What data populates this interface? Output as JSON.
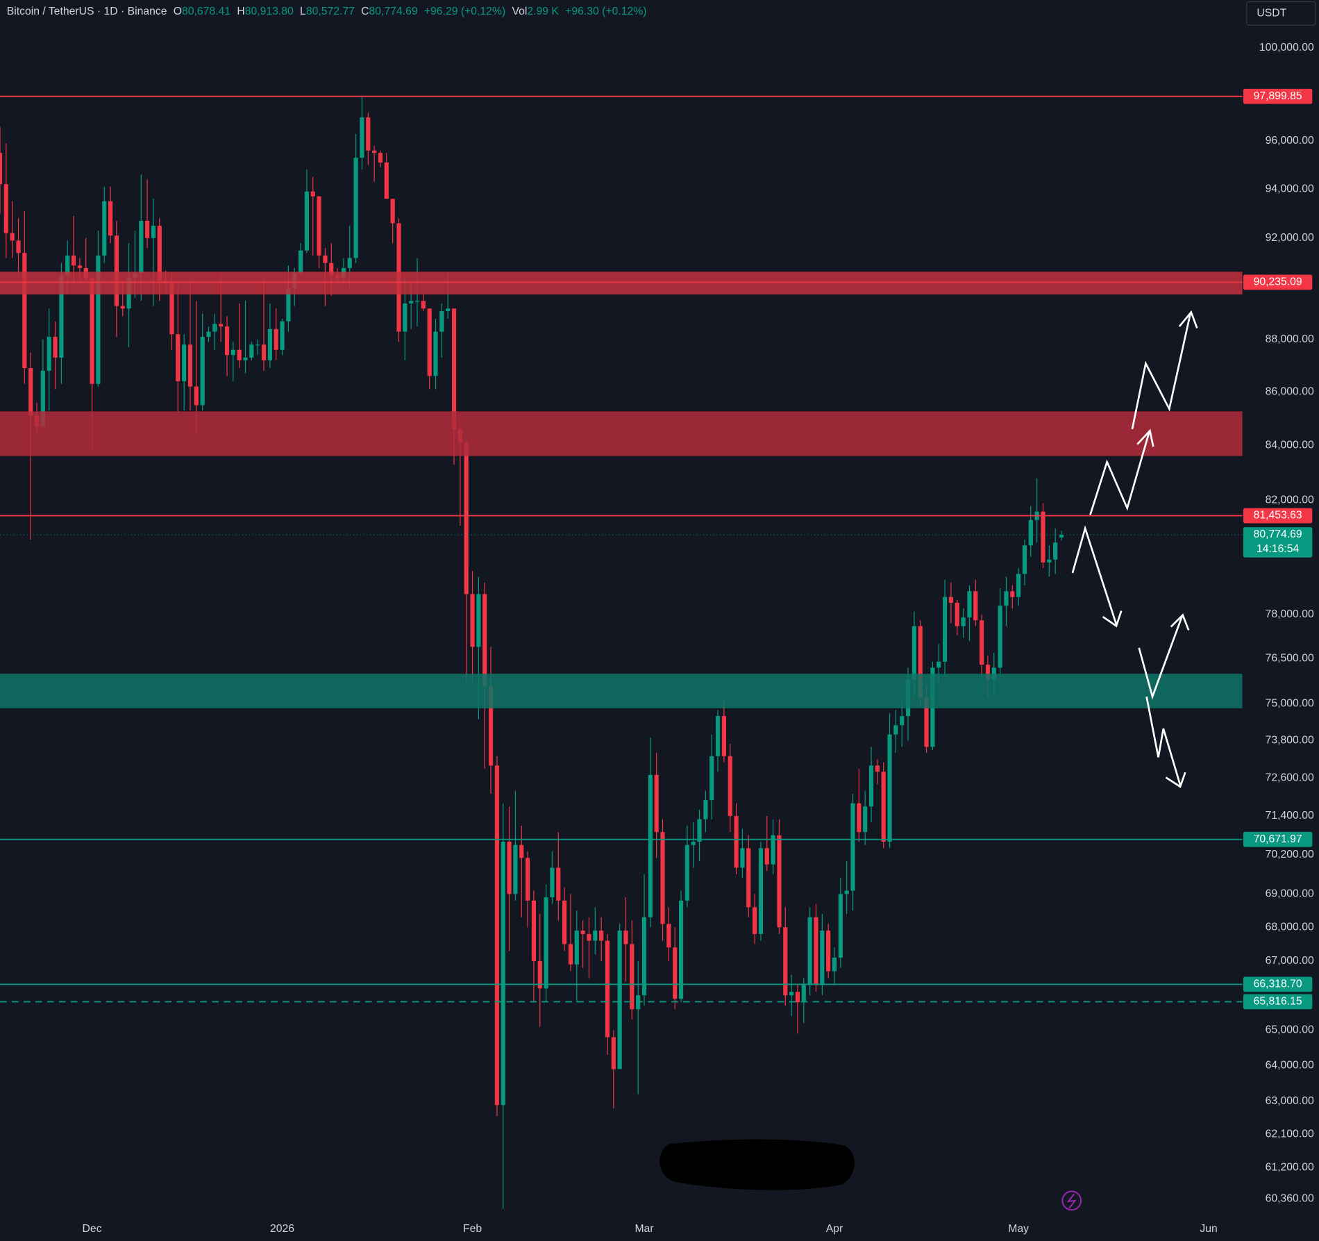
{
  "header": {
    "symbol": "Bitcoin / TetherUS · 1D · Binance",
    "open_label": "O",
    "open": "80,678.41",
    "high_label": "H",
    "high": "80,913.80",
    "low_label": "L",
    "low": "80,572.77",
    "close_label": "C",
    "close": "80,774.69",
    "change": "+96.29 (+0.12%)",
    "vol_label": "Vol",
    "volume": "2.99 K",
    "vol_change": "+96.30 (+0.12%)"
  },
  "currency": "USDT",
  "chart_data": {
    "type": "candlestick",
    "up_color": "#089981",
    "down_color": "#f23645",
    "log_scale": true,
    "ylim": [
      59918,
      102126
    ],
    "yticks": [
      {
        "value": 100000,
        "label": "100,000.00"
      },
      {
        "value": 96000,
        "label": "96,000.00"
      },
      {
        "value": 94000,
        "label": "94,000.00"
      },
      {
        "value": 92000,
        "label": "92,000.00"
      },
      {
        "value": 88000,
        "label": "88,000.00"
      },
      {
        "value": 86000,
        "label": "86,000.00"
      },
      {
        "value": 84000,
        "label": "84,000.00"
      },
      {
        "value": 82000,
        "label": "82,000.00"
      },
      {
        "value": 78000,
        "label": "78,000.00"
      },
      {
        "value": 76500,
        "label": "76,500.00"
      },
      {
        "value": 75000,
        "label": "75,000.00"
      },
      {
        "value": 73800,
        "label": "73,800.00"
      },
      {
        "value": 72600,
        "label": "72,600.00"
      },
      {
        "value": 71400,
        "label": "71,400.00"
      },
      {
        "value": 70200,
        "label": "70,200.00"
      },
      {
        "value": 69000,
        "label": "69,000.00"
      },
      {
        "value": 68000,
        "label": "68,000.00"
      },
      {
        "value": 67000,
        "label": "67,000.00"
      },
      {
        "value": 65000,
        "label": "65,000.00"
      },
      {
        "value": 64000,
        "label": "64,000.00"
      },
      {
        "value": 63000,
        "label": "63,000.00"
      },
      {
        "value": 62100,
        "label": "62,100.00"
      },
      {
        "value": 61200,
        "label": "61,200.00"
      },
      {
        "value": 60360,
        "label": "60,360.00"
      }
    ],
    "xlim": [
      0,
      202.5
    ],
    "xticks": [
      {
        "value": 15,
        "label": "Dec"
      },
      {
        "value": 46,
        "label": "2026"
      },
      {
        "value": 77,
        "label": "Feb"
      },
      {
        "value": 105,
        "label": "Mar"
      },
      {
        "value": 136,
        "label": "Apr"
      },
      {
        "value": 166,
        "label": "May"
      },
      {
        "value": 197,
        "label": "Jun"
      }
    ],
    "open": [
      95500,
      94200,
      92200,
      91900,
      91400,
      86900,
      85100,
      84700,
      86800,
      88100,
      87300,
      90500,
      91300,
      90900,
      90800,
      90400,
      86300,
      91300,
      93500,
      92100,
      89300,
      89200,
      90400,
      90600,
      92700,
      92000,
      92500,
      90300,
      90200,
      88200,
      86400,
      87800,
      86200,
      85500,
      88100,
      88300,
      88600,
      88500,
      87400,
      87600,
      87200,
      87300,
      87800,
      87800,
      87200,
      88400,
      87600,
      88700,
      90000,
      90600,
      91500,
      93900,
      93700,
      91300,
      91000,
      90500,
      90400,
      90800,
      91200,
      95300,
      97000,
      95600,
      95500,
      95100,
      93600,
      92600,
      88300,
      89400,
      89500,
      89500,
      89200,
      86600,
      88300,
      89100,
      89200,
      84600,
      84100,
      78700,
      76900,
      78700,
      75600,
      73000,
      62900,
      70600,
      69000,
      70500,
      70100,
      68800,
      67000,
      66200,
      68900,
      69800,
      68800,
      67500,
      66900,
      67900,
      67800,
      67600,
      67900,
      67600,
      64800,
      63900,
      67900,
      67500,
      65600,
      66000,
      68300,
      72700,
      70900,
      68100,
      67400,
      65900,
      68800,
      70500,
      70600,
      71300,
      71900,
      73300,
      74600,
      73300,
      71400,
      69800,
      70400,
      68600,
      67800,
      70400,
      69900,
      70800,
      68000,
      66000,
      66100,
      65800,
      66300,
      68300,
      66300,
      67900,
      66700,
      67100,
      69000,
      69100,
      71800,
      70900,
      71700,
      73000,
      72800,
      70600,
      74000,
      74300,
      74600,
      75800,
      77600,
      75200,
      73600,
      76200,
      76400,
      78600,
      78400,
      77600,
      77900,
      78800,
      77800,
      76300,
      75800,
      76200,
      78300,
      78800,
      78600,
      79400,
      80400,
      81300,
      81600,
      79800,
      79900,
      80678.41
    ],
    "high": [
      96600,
      95900,
      93500,
      92800,
      93100,
      87500,
      85600,
      88000,
      89200,
      88700,
      91000,
      91900,
      92900,
      91200,
      92000,
      90400,
      92300,
      94100,
      94100,
      92700,
      90300,
      91800,
      92300,
      94600,
      94400,
      93600,
      92800,
      90700,
      90600,
      90100,
      88200,
      90300,
      89500,
      89000,
      88500,
      89000,
      90600,
      88900,
      87900,
      89400,
      89500,
      87900,
      88000,
      90400,
      89400,
      89200,
      88800,
      90900,
      90800,
      91800,
      94800,
      94500,
      93700,
      91600,
      91800,
      90800,
      91200,
      92500,
      96300,
      97900,
      97200,
      95800,
      95600,
      95500,
      93600,
      92800,
      90400,
      90300,
      91200,
      89800,
      89200,
      88800,
      89400,
      90600,
      89200,
      84700,
      84200,
      79500,
      79300,
      79100,
      76900,
      73300,
      71800,
      71700,
      72200,
      71100,
      70300,
      69100,
      68400,
      69300,
      70300,
      70900,
      69200,
      69000,
      68500,
      68200,
      68300,
      68600,
      68300,
      67800,
      65000,
      68100,
      68900,
      68200,
      67000,
      69600,
      73900,
      73400,
      71300,
      68600,
      68000,
      69100,
      71100,
      71200,
      71600,
      72200,
      74000,
      74800,
      75200,
      73700,
      71800,
      71000,
      70800,
      69000,
      70600,
      71400,
      71300,
      71300,
      68600,
      66600,
      66300,
      66500,
      68600,
      68700,
      68400,
      68100,
      67400,
      69500,
      70000,
      72100,
      72900,
      72200,
      73600,
      73200,
      73100,
      74700,
      74800,
      75100,
      76200,
      78100,
      77800,
      75600,
      76400,
      77000,
      79200,
      79100,
      78500,
      78200,
      79000,
      79200,
      78000,
      76600,
      76700,
      78900,
      79300,
      79000,
      79600,
      80600,
      81800,
      82800,
      81900,
      80400,
      81000,
      80913.8
    ],
    "low": [
      93000,
      91200,
      91200,
      90500,
      86300,
      80600,
      84400,
      84600,
      85300,
      86100,
      86300,
      89800,
      90200,
      90300,
      90300,
      83800,
      86200,
      91000,
      91800,
      88100,
      88900,
      87700,
      89600,
      89500,
      91600,
      89300,
      89500,
      89800,
      87600,
      85200,
      85300,
      85300,
      84500,
      85300,
      87900,
      87600,
      87900,
      86600,
      86400,
      86900,
      86700,
      87200,
      87400,
      86800,
      86900,
      87200,
      87400,
      88300,
      89300,
      90500,
      91400,
      91300,
      90800,
      89300,
      89700,
      90200,
      90200,
      90000,
      91000,
      94800,
      95000,
      94300,
      94900,
      93600,
      91800,
      87900,
      87200,
      88400,
      88500,
      89100,
      86100,
      86100,
      87300,
      88800,
      83300,
      81100,
      75700,
      75700,
      74500,
      72900,
      72100,
      62600,
      60100,
      67300,
      68800,
      68300,
      68000,
      65800,
      65100,
      65800,
      68700,
      68200,
      67300,
      66700,
      65800,
      66800,
      66500,
      67200,
      67000,
      64300,
      62800,
      63900,
      66400,
      65300,
      63200,
      65700,
      68000,
      70100,
      67600,
      67000,
      65600,
      65800,
      68600,
      69800,
      70000,
      70900,
      71300,
      72800,
      73100,
      70900,
      69600,
      69500,
      68300,
      67500,
      67600,
      69700,
      69600,
      67800,
      65700,
      65400,
      64900,
      65200,
      66000,
      66100,
      66000,
      66500,
      66300,
      66800,
      68400,
      68500,
      70600,
      70500,
      71200,
      72400,
      70400,
      70400,
      73400,
      73600,
      73800,
      75200,
      74900,
      73400,
      73500,
      75600,
      75900,
      77700,
      77300,
      77200,
      77100,
      77600,
      75900,
      75200,
      75300,
      75900,
      77600,
      78200,
      78300,
      79000,
      80000,
      80500,
      79600,
      79300,
      79400,
      80572.77
    ],
    "close": [
      94200,
      92200,
      91900,
      91400,
      86900,
      85100,
      84700,
      86800,
      88100,
      87300,
      90500,
      91300,
      90900,
      90800,
      90400,
      86300,
      91300,
      93500,
      92100,
      89300,
      89200,
      90400,
      90600,
      92700,
      92000,
      92500,
      90300,
      90200,
      88200,
      86400,
      87800,
      86200,
      85500,
      88100,
      88300,
      88600,
      88500,
      87400,
      87600,
      87200,
      87300,
      87800,
      87800,
      87200,
      88400,
      87600,
      88700,
      90000,
      90600,
      91500,
      93900,
      93700,
      91300,
      91000,
      90500,
      90400,
      90800,
      91200,
      95300,
      97000,
      95600,
      95500,
      95100,
      93600,
      92600,
      88300,
      89400,
      89500,
      89500,
      89200,
      86600,
      88300,
      89100,
      89200,
      84600,
      84100,
      78700,
      76900,
      78700,
      75600,
      73000,
      62900,
      70600,
      69000,
      70500,
      70100,
      68800,
      67000,
      66200,
      68900,
      69800,
      68800,
      67500,
      66900,
      67900,
      67800,
      67600,
      67900,
      67600,
      64800,
      63900,
      67900,
      67500,
      65600,
      66000,
      68300,
      72700,
      70900,
      68100,
      67400,
      65900,
      68800,
      70500,
      70600,
      71300,
      71900,
      73300,
      74600,
      73300,
      71400,
      69800,
      70400,
      68600,
      67800,
      70400,
      69900,
      70800,
      68000,
      66000,
      66100,
      65800,
      66300,
      68300,
      66300,
      67900,
      66700,
      67100,
      69000,
      69100,
      71800,
      70900,
      71700,
      73000,
      72800,
      70600,
      74000,
      74300,
      74600,
      75800,
      77600,
      75200,
      73600,
      76200,
      76400,
      78600,
      78400,
      77600,
      77900,
      78800,
      77800,
      76300,
      75800,
      76200,
      78300,
      78800,
      78600,
      79400,
      80400,
      81300,
      81600,
      79800,
      79900,
      80500,
      80774.69
    ],
    "zones": [
      {
        "from": 89752,
        "to": 90650,
        "color": "#c22f3c"
      },
      {
        "from": 83613,
        "to": 85265,
        "color": "#b32c39"
      },
      {
        "from": 74856,
        "to": 75997,
        "color": "#0e7466"
      }
    ],
    "levels": [
      {
        "value": 97899.85,
        "label": "97,899.85",
        "color": "#f23645",
        "style": "solid"
      },
      {
        "value": 90235.09,
        "label": "90,235.09",
        "color": "#f23645",
        "style": "solid"
      },
      {
        "value": 81453.63,
        "label": "81,453.63",
        "color": "#f23645",
        "style": "solid"
      },
      {
        "value": 80774.69,
        "label": "80,774.69",
        "color": "#089981",
        "style": "dotted",
        "countdown": "14:16:54"
      },
      {
        "value": 70671.97,
        "label": "70,671.97",
        "color": "#089981",
        "style": "solid"
      },
      {
        "value": 66318.7,
        "label": "66,318.70",
        "color": "#089981",
        "style": "solid"
      },
      {
        "value": 65816.15,
        "label": "65,816.15",
        "color": "#089981",
        "style": "dashed"
      }
    ]
  }
}
